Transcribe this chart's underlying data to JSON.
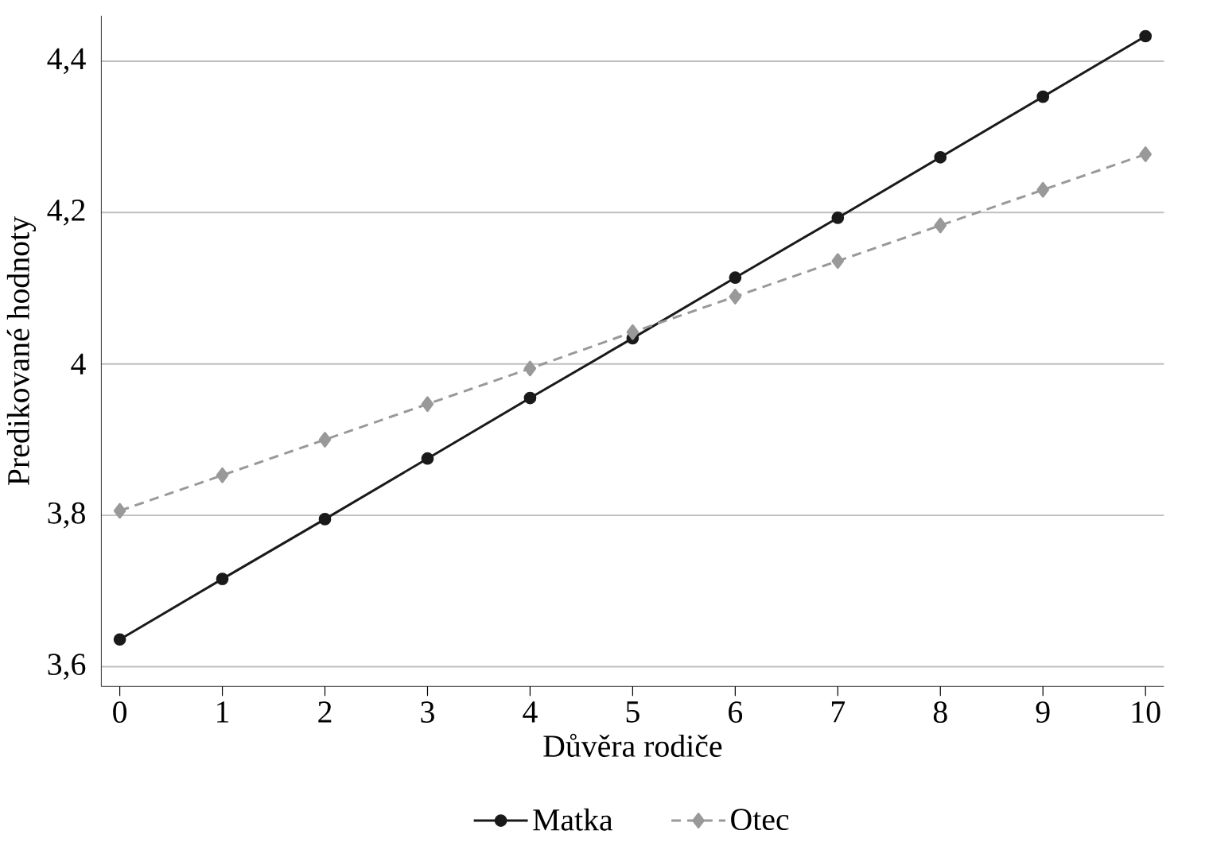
{
  "chart_data": {
    "type": "line",
    "xlabel": "Důvěra rodiče",
    "ylabel": "Predikované hodnoty",
    "x": [
      0,
      1,
      2,
      3,
      4,
      5,
      6,
      7,
      8,
      9,
      10
    ],
    "series": [
      {
        "name": "Matka",
        "color": "#1a1a1a",
        "marker": "circle",
        "line_style": "solid",
        "values": [
          3.636,
          3.716,
          3.795,
          3.875,
          3.955,
          4.034,
          4.114,
          4.193,
          4.273,
          4.353,
          4.433
        ]
      },
      {
        "name": "Otec",
        "color": "#999999",
        "marker": "diamond",
        "line_style": "dashed",
        "values": [
          3.806,
          3.853,
          3.9,
          3.947,
          3.994,
          4.042,
          4.089,
          4.136,
          4.183,
          4.23,
          4.277
        ]
      }
    ],
    "xlim": [
      -0.18,
      10.18
    ],
    "ylim": [
      3.574,
      4.46
    ],
    "xticks": [
      0,
      1,
      2,
      3,
      4,
      5,
      6,
      7,
      8,
      9,
      10
    ],
    "yticks": [
      {
        "value": 3.6,
        "label": "3,6"
      },
      {
        "value": 3.8,
        "label": "3,8"
      },
      {
        "value": 4,
        "label": "4"
      },
      {
        "value": 4.2,
        "label": "4,2"
      },
      {
        "value": 4.4,
        "label": "4,4"
      }
    ],
    "grid": "y",
    "legend": "bottom"
  }
}
